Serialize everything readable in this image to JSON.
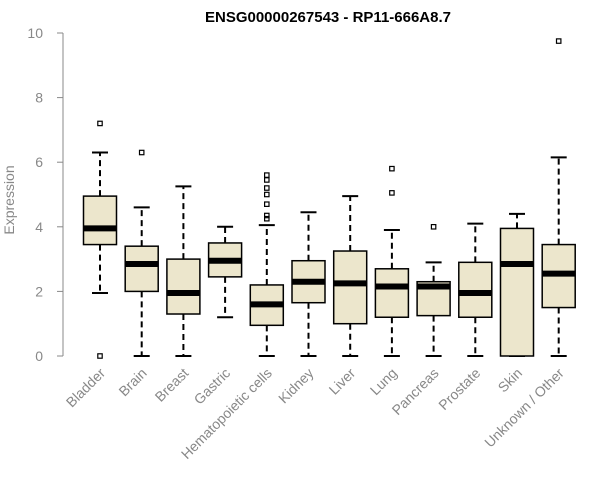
{
  "chart_data": {
    "type": "boxplot",
    "title": "ENSG00000267543 - RP11-666A8.7",
    "xlabel": "",
    "ylabel": "Expression",
    "ylim": [
      0,
      10
    ],
    "yticks": [
      0,
      2,
      4,
      6,
      8,
      10
    ],
    "grid": false,
    "legend": "none",
    "colors": {
      "box_fill": "#ece6cc",
      "box_stroke": "#000000",
      "median": "#000000",
      "axis": "#888888"
    },
    "categories": [
      "Bladder",
      "Brain",
      "Breast",
      "Gastric",
      "Hematopoietic cells",
      "Kidney",
      "Liver",
      "Lung",
      "Pancreas",
      "Prostate",
      "Skin",
      "Unknown / Other"
    ],
    "boxes": [
      {
        "category": "Bladder",
        "min": 1.95,
        "q1": 3.45,
        "median": 3.95,
        "q3": 4.95,
        "max": 6.3,
        "outliers": [
          7.2,
          0.0
        ]
      },
      {
        "category": "Brain",
        "min": 0.0,
        "q1": 2.0,
        "median": 2.85,
        "q3": 3.4,
        "max": 4.6,
        "outliers": [
          6.3
        ]
      },
      {
        "category": "Breast",
        "min": 0.0,
        "q1": 1.3,
        "median": 1.95,
        "q3": 3.0,
        "max": 5.25,
        "outliers": []
      },
      {
        "category": "Gastric",
        "min": 1.2,
        "q1": 2.45,
        "median": 2.95,
        "q3": 3.5,
        "max": 4.0,
        "outliers": []
      },
      {
        "category": "Hematopoietic cells",
        "min": 0.0,
        "q1": 0.95,
        "median": 1.6,
        "q3": 2.2,
        "max": 4.05,
        "outliers": [
          4.25,
          4.35,
          4.7,
          5.0,
          5.2,
          5.45,
          5.6
        ]
      },
      {
        "category": "Kidney",
        "min": 0.0,
        "q1": 1.65,
        "median": 2.3,
        "q3": 2.95,
        "max": 4.45,
        "outliers": []
      },
      {
        "category": "Liver",
        "min": 0.0,
        "q1": 1.0,
        "median": 2.25,
        "q3": 3.25,
        "max": 4.95,
        "outliers": []
      },
      {
        "category": "Lung",
        "min": 0.0,
        "q1": 1.2,
        "median": 2.15,
        "q3": 2.7,
        "max": 3.9,
        "outliers": [
          5.05,
          5.8
        ]
      },
      {
        "category": "Pancreas",
        "min": 0.0,
        "q1": 1.25,
        "median": 2.15,
        "q3": 2.3,
        "max": 2.9,
        "outliers": [
          4.0
        ]
      },
      {
        "category": "Prostate",
        "min": 0.0,
        "q1": 1.2,
        "median": 1.95,
        "q3": 2.9,
        "max": 4.1,
        "outliers": []
      },
      {
        "category": "Skin",
        "min": 0.0,
        "q1": 0.0,
        "median": 2.85,
        "q3": 3.95,
        "max": 4.4,
        "outliers": []
      },
      {
        "category": "Unknown / Other",
        "min": 0.0,
        "q1": 1.5,
        "median": 2.55,
        "q3": 3.45,
        "max": 6.15,
        "outliers": [
          9.75
        ]
      }
    ]
  }
}
